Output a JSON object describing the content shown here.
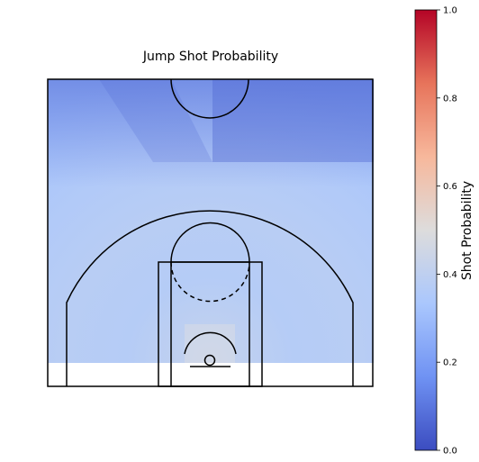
{
  "chart_data": {
    "type": "heatmap",
    "title": "Jump Shot Probability",
    "xlabel": "",
    "ylabel": "",
    "colorbar": {
      "label": "Shot Probability",
      "range": [
        0.0,
        1.0
      ],
      "ticks": [
        0.0,
        0.2,
        0.4,
        0.6,
        0.8,
        1.0
      ],
      "tick_labels": [
        "0.0",
        "0.2",
        "0.4",
        "0.6",
        "0.8",
        "1.0"
      ],
      "colormap": "coolwarm",
      "colors": [
        "#3b4cc0",
        "#6f92f3",
        "#aac7fd",
        "#dddcdc",
        "#f7b89c",
        "#e7745b",
        "#b40426"
      ]
    },
    "regions": [
      {
        "zone": "backcourt_left_corner",
        "probability": 0.28
      },
      {
        "zone": "backcourt_right",
        "probability": 0.2
      },
      {
        "zone": "deep_three",
        "probability": 0.32
      },
      {
        "zone": "three_point_arc",
        "probability": 0.36
      },
      {
        "zone": "midrange",
        "probability": 0.38
      },
      {
        "zone": "paint",
        "probability": 0.37
      },
      {
        "zone": "near_basket",
        "probability": 0.42
      }
    ],
    "grid": false,
    "legend": "none"
  }
}
